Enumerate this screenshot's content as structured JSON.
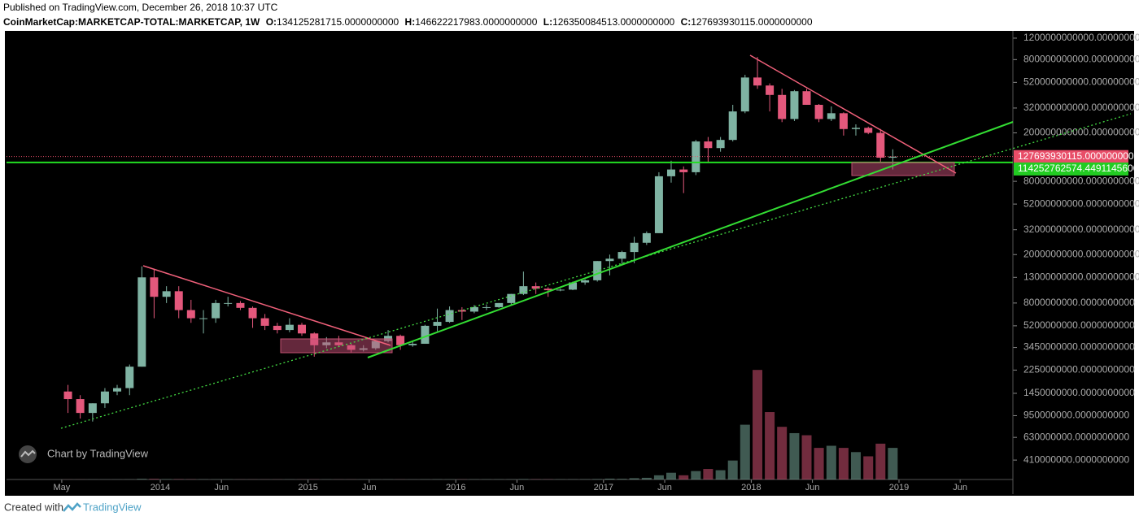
{
  "header": {
    "published": "Published on TradingView.com, December 26, 2018 10:37 UTC",
    "symbol": "CoinMarketCap:MARKETCAP-TOTAL:MARKETCAP, 1W",
    "ohlc": [
      {
        "label": "O:",
        "value": "134125281715.0000000000"
      },
      {
        "label": "H:",
        "value": "146622217983.0000000000"
      },
      {
        "label": "L:",
        "value": "126350084513.0000000000"
      },
      {
        "label": "C:",
        "value": "127693930115.0000000000"
      }
    ]
  },
  "chart_data": {
    "type": "candlestick",
    "log_scale": true,
    "grid": false,
    "up_color": "#7fb3a3",
    "down_color": "#e4587c",
    "xlim": [
      2012.959,
      2019.771
    ],
    "xticks": [
      {
        "value": 2013.333,
        "label": "May"
      },
      2014,
      {
        "value": 2014.414,
        "label": "Jun"
      },
      2015,
      {
        "value": 2015.414,
        "label": "Jun"
      },
      2016,
      {
        "value": 2016.414,
        "label": "Jun"
      },
      2017,
      {
        "value": 2017.414,
        "label": "Jun"
      },
      2018,
      {
        "value": 2018.414,
        "label": "Jun"
      },
      2019,
      {
        "value": 2019.414,
        "label": "Jun"
      }
    ],
    "ylim": [
      284000000,
      1377000000000
    ],
    "yticks": [
      {
        "value": 1200000000000,
        "label": "1200000000000.0000000000"
      },
      {
        "value": 800000000000,
        "label": "800000000000.0000000000"
      },
      {
        "value": 520000000000,
        "label": "520000000000.0000000000"
      },
      {
        "value": 320000000000,
        "label": "320000000000.0000000000"
      },
      {
        "value": 200000000000,
        "label": "200000000000.0000000000"
      },
      {
        "value": 80000000000,
        "label": "80000000000.0000000000"
      },
      {
        "value": 52000000000,
        "label": "52000000000.0000000000"
      },
      {
        "value": 32000000000,
        "label": "32000000000.0000000000"
      },
      {
        "value": 20000000000,
        "label": "20000000000.0000000000"
      },
      {
        "value": 13000000000,
        "label": "13000000000.0000000000"
      },
      {
        "value": 8000000000,
        "label": "8000000000.0000000000"
      },
      {
        "value": 5200000000,
        "label": "5200000000.0000000000"
      },
      {
        "value": 3450000000,
        "label": "3450000000.0000000000"
      },
      {
        "value": 2250000000,
        "label": "2250000000.0000000000"
      },
      {
        "value": 1450000000,
        "label": "1450000000.0000000000"
      },
      {
        "value": 950000000,
        "label": "950000000.0000000000"
      },
      {
        "value": 630000000,
        "label": "630000000.0000000000"
      },
      {
        "value": 410000000,
        "label": "410000000.0000000000"
      }
    ],
    "last_price": {
      "value": 127693930115,
      "label": "127693930115.0000000000"
    },
    "level": {
      "value": 114252762574,
      "label": "114252762574.4491145600"
    },
    "x": [
      2013.375,
      2013.458,
      2013.542,
      2013.625,
      2013.708,
      2013.792,
      2013.875,
      2013.958,
      2014.042,
      2014.125,
      2014.208,
      2014.292,
      2014.375,
      2014.458,
      2014.542,
      2014.625,
      2014.708,
      2014.792,
      2014.875,
      2014.958,
      2015.042,
      2015.125,
      2015.208,
      2015.292,
      2015.375,
      2015.458,
      2015.542,
      2015.625,
      2015.708,
      2015.792,
      2015.875,
      2015.958,
      2016.042,
      2016.125,
      2016.208,
      2016.292,
      2016.375,
      2016.458,
      2016.542,
      2016.625,
      2016.708,
      2016.792,
      2016.875,
      2016.958,
      2017.042,
      2017.125,
      2017.208,
      2017.292,
      2017.375,
      2017.458,
      2017.542,
      2017.625,
      2017.708,
      2017.792,
      2017.875,
      2017.958,
      2018.042,
      2018.125,
      2018.208,
      2018.292,
      2018.375,
      2018.458,
      2018.542,
      2018.625,
      2018.708,
      2018.792,
      2018.875,
      2018.958
    ],
    "open": [
      1500000000.0,
      1300000000.0,
      1000000000.0,
      1200000000.0,
      1500000000.0,
      1600000000.0,
      2400000000.0,
      13000000000.0,
      9000000000.0,
      10000000000.0,
      7000000000.0,
      6000000000.0,
      6000000000.0,
      8000000000.0,
      8000000000.0,
      7300000000.0,
      6000000000.0,
      5200000000.0,
      4800000000.0,
      5300000000.0,
      4500000000.0,
      3600000000.0,
      3800000000.0,
      3600000000.0,
      3300000000.0,
      3400000000.0,
      3900000000.0,
      4300000000.0,
      3600000000.0,
      3700000000.0,
      5200000000.0,
      5600000000.0,
      7000000000.0,
      6800000000.0,
      7400000000.0,
      7400000000.0,
      8000000000.0,
      9500000000.0,
      11000000000.0,
      10500000000.0,
      10200000000.0,
      10300000000.0,
      11800000000.0,
      12300000000.0,
      17700000000.0,
      18500000000.0,
      21000000000.0,
      25000000000.0,
      30000000000.0,
      88000000000.0,
      100000000000.0,
      95000000000.0,
      170000000000.0,
      150000000000.0,
      175000000000.0,
      300000000000.0,
      570000000000.0,
      490000000000.0,
      410000000000.0,
      260000000000.0,
      440000000000.0,
      340000000000.0,
      260000000000.0,
      290000000000.0,
      215000000000.0,
      220000000000.0,
      200000000000.0,
      125000000000.0
    ],
    "high": [
      1700000000.0,
      1400000000.0,
      1200000000.0,
      1600000000.0,
      1700000000.0,
      2500000000.0,
      16000000000.0,
      15000000000.0,
      11000000000.0,
      11000000000.0,
      8500000000.0,
      7000000000.0,
      8500000000.0,
      9000000000.0,
      8300000000.0,
      7500000000.0,
      6500000000.0,
      5500000000.0,
      6000000000.0,
      5500000000.0,
      4600000000.0,
      4200000000.0,
      4300000000.0,
      3700000000.0,
      3600000000.0,
      3900000000.0,
      4800000000.0,
      4400000000.0,
      3900000000.0,
      5300000000.0,
      7200000000.0,
      7500000000.0,
      7400000000.0,
      7700000000.0,
      7800000000.0,
      8000000000.0,
      9500000000.0,
      14500000000.0,
      11800000000.0,
      10800000000.0,
      10500000000.0,
      12000000000.0,
      12500000000.0,
      17700000000.0,
      20000000000.0,
      21500000000.0,
      28000000000.0,
      31000000000.0,
      95000000000.0,
      118000000000.0,
      106000000000.0,
      175000000000.0,
      185000000000.0,
      185000000000.0,
      340000000000.0,
      600000000000.0,
      840000000000.0,
      510000000000.0,
      460000000000.0,
      450000000000.0,
      460000000000.0,
      345000000000.0,
      330000000000.0,
      295000000000.0,
      235000000000.0,
      225000000000.0,
      215000000000.0,
      146622217983
    ],
    "low": [
      1000000000.0,
      900000000.0,
      850000000.0,
      1100000000.0,
      1400000000.0,
      1400000000.0,
      2400000000.0,
      6000000000.0,
      8000000000.0,
      6000000000.0,
      5500000000.0,
      4500000000.0,
      5500000000.0,
      7500000000.0,
      7000000000.0,
      5000000000.0,
      4800000000.0,
      4500000000.0,
      4600000000.0,
      4300000000.0,
      2900000000.0,
      3400000000.0,
      3500000000.0,
      3100000000.0,
      3200000000.0,
      3300000000.0,
      3800000000.0,
      3300000000.0,
      3500000000.0,
      3700000000.0,
      4700000000.0,
      5500000000.0,
      5800000000.0,
      6600000000.0,
      7000000000.0,
      7300000000.0,
      7700000000.0,
      9300000000.0,
      9500000000.0,
      9000000000.0,
      10000000000.0,
      10200000000.0,
      11300000000.0,
      12000000000.0,
      13500000000.0,
      16500000000.0,
      17000000000.0,
      24000000000.0,
      30000000000.0,
      78000000000.0,
      64000000000.0,
      90000000000.0,
      115000000000.0,
      140000000000.0,
      170000000000.0,
      290000000000.0,
      460000000000.0,
      300000000000.0,
      245000000000.0,
      250000000000.0,
      340000000000.0,
      245000000000.0,
      250000000000.0,
      190000000000.0,
      190000000000.0,
      195000000000.0,
      115000000000.0,
      100000000000.0
    ],
    "close": [
      1300000000.0,
      1000000000.0,
      1200000000.0,
      1500000000.0,
      1600000000.0,
      2400000000.0,
      13000000000.0,
      9000000000.0,
      10000000000.0,
      7000000000.0,
      6000000000.0,
      6000000000.0,
      8000000000.0,
      8000000000.0,
      7300000000.0,
      6000000000.0,
      5200000000.0,
      4800000000.0,
      5300000000.0,
      4500000000.0,
      3600000000.0,
      3800000000.0,
      3600000000.0,
      3300000000.0,
      3400000000.0,
      3900000000.0,
      4300000000.0,
      3600000000.0,
      3700000000.0,
      5200000000.0,
      5600000000.0,
      7000000000.0,
      6800000000.0,
      7400000000.0,
      7400000000.0,
      8000000000.0,
      9500000000.0,
      11000000000.0,
      10500000000.0,
      10200000000.0,
      10300000000.0,
      11800000000.0,
      12300000000.0,
      17700000000.0,
      18500000000.0,
      21000000000.0,
      25000000000.0,
      30000000000.0,
      88000000000.0,
      100000000000.0,
      95000000000.0,
      170000000000.0,
      150000000000.0,
      175000000000.0,
      300000000000.0,
      570000000000.0,
      490000000000.0,
      410000000000.0,
      260000000000.0,
      440000000000.0,
      340000000000.0,
      260000000000.0,
      290000000000.0,
      215000000000.0,
      220000000000.0,
      200000000000.0,
      125000000000.0,
      127693930115
    ],
    "volume": [
      200000000.0,
      200000000.0,
      200000000.0,
      200000000.0,
      200000000.0,
      300000000.0,
      1500000000.0,
      1500000000.0,
      800000000.0,
      800000000.0,
      600000000.0,
      500000000.0,
      400000000.0,
      400000000.0,
      300000000.0,
      300000000.0,
      300000000.0,
      300000000.0,
      300000000.0,
      300000000.0,
      500000000.0,
      300000000.0,
      300000000.0,
      300000000.0,
      200000000.0,
      300000000.0,
      300000000.0,
      300000000.0,
      200000000.0,
      400000000.0,
      600000000.0,
      400000000.0,
      400000000.0,
      400000000.0,
      400000000.0,
      400000000.0,
      500000000.0,
      1000000000.0,
      700000000.0,
      500000000.0,
      400000000.0,
      500000000.0,
      600000000.0,
      1000000000.0,
      2000000000.0,
      1500000000.0,
      3000000000.0,
      4000000000.0,
      10000000000.0,
      16000000000.0,
      10000000000.0,
      20000000000.0,
      25000000000.0,
      22000000000.0,
      45000000000.0,
      130000000000.0,
      260000000000.0,
      160000000000.0,
      125000000000.0,
      110000000000.0,
      105000000000.0,
      75000000000.0,
      80000000000.0,
      75000000000.0,
      65000000000.0,
      55000000000.0,
      85000000000.0,
      75000000000.0
    ],
    "volume_lim": [
      0,
      270000000000.0
    ]
  }
}
